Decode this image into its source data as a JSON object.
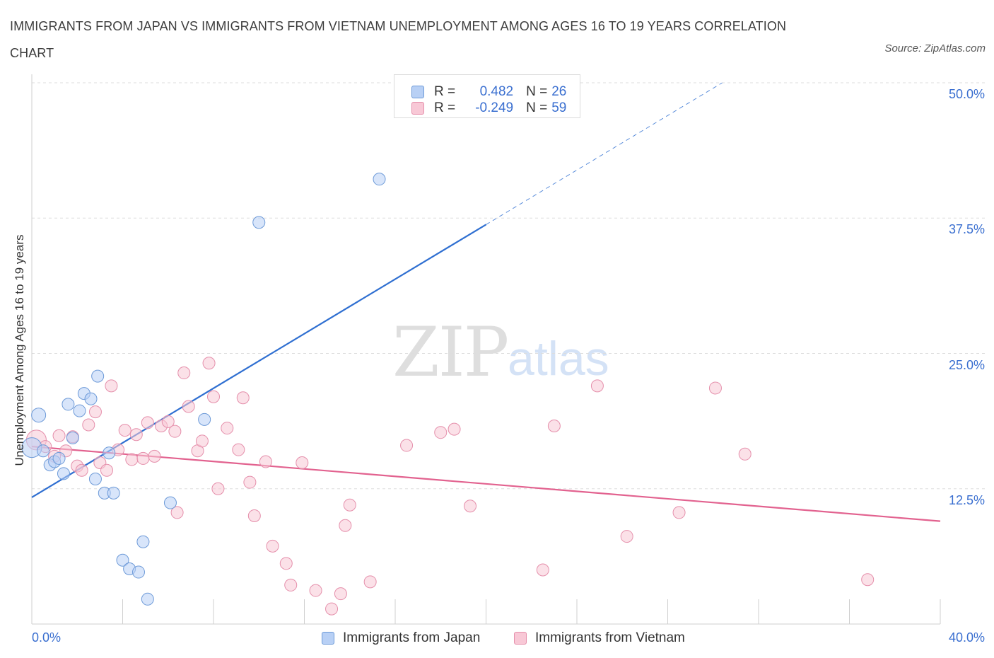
{
  "title": "IMMIGRANTS FROM JAPAN VS IMMIGRANTS FROM VIETNAM UNEMPLOYMENT AMONG AGES 16 TO 19 YEARS CORRELATION CHART",
  "source": "Source: ZipAtlas.com",
  "watermark": {
    "zip": "ZIP",
    "atlas": "atlas"
  },
  "colors": {
    "japan_fill": "#b8d0f5",
    "japan_stroke": "#6d9ad8",
    "japan_line": "#2f6fd1",
    "vietnam_fill": "#f8c8d6",
    "vietnam_stroke": "#e58fab",
    "vietnam_line": "#e2628f",
    "grid": "#dddddd",
    "axis_text": "#3a6fd0"
  },
  "legend": {
    "rows": [
      {
        "r_label": "R =",
        "r_value": "0.482",
        "n_label": "N =",
        "n_value": "26"
      },
      {
        "r_label": "R =",
        "r_value": "-0.249",
        "n_label": "N =",
        "n_value": "59"
      }
    ],
    "bottom": {
      "japan": "Immigrants from Japan",
      "vietnam": "Immigrants from Vietnam"
    }
  },
  "chart_data": {
    "type": "scatter",
    "title": "IMMIGRANTS FROM JAPAN VS IMMIGRANTS FROM VIETNAM UNEMPLOYMENT AMONG AGES 16 TO 19 YEARS CORRELATION CHART",
    "xlabel": "",
    "ylabel": "Unemployment Among Ages 16 to 19 years",
    "xlim": [
      0,
      40
    ],
    "ylim": [
      0,
      50
    ],
    "x_tick_labels": [
      "0.0%",
      "40.0%"
    ],
    "y_ticks": [
      12.5,
      25.0,
      37.5,
      50.0
    ],
    "y_tick_labels": [
      "12.5%",
      "25.0%",
      "37.5%",
      "50.0%"
    ],
    "series": [
      {
        "name": "Immigrants from Japan",
        "R": 0.482,
        "N": 26,
        "trend": {
          "x0": 0,
          "y0": 11.7,
          "x1": 20,
          "y1": 36.9,
          "dashed_to_x": 30.4,
          "dashed_to_y": 50.0
        },
        "points": [
          {
            "x": 0.0,
            "y": 16.3,
            "s": "l"
          },
          {
            "x": 0.3,
            "y": 19.3,
            "s": "m"
          },
          {
            "x": 0.5,
            "y": 16.0,
            "s": "s"
          },
          {
            "x": 0.8,
            "y": 14.7,
            "s": "s"
          },
          {
            "x": 1.0,
            "y": 15.0,
            "s": "s"
          },
          {
            "x": 1.2,
            "y": 15.3,
            "s": "s"
          },
          {
            "x": 1.4,
            "y": 13.9,
            "s": "s"
          },
          {
            "x": 1.6,
            "y": 20.3,
            "s": "s"
          },
          {
            "x": 1.8,
            "y": 17.2,
            "s": "s"
          },
          {
            "x": 2.1,
            "y": 19.7,
            "s": "s"
          },
          {
            "x": 2.3,
            "y": 21.3,
            "s": "s"
          },
          {
            "x": 2.6,
            "y": 20.8,
            "s": "s"
          },
          {
            "x": 2.8,
            "y": 13.4,
            "s": "s"
          },
          {
            "x": 2.9,
            "y": 22.9,
            "s": "s"
          },
          {
            "x": 3.2,
            "y": 12.1,
            "s": "s"
          },
          {
            "x": 3.4,
            "y": 15.8,
            "s": "s"
          },
          {
            "x": 3.6,
            "y": 12.1,
            "s": "s"
          },
          {
            "x": 4.0,
            "y": 5.9,
            "s": "s"
          },
          {
            "x": 4.3,
            "y": 5.1,
            "s": "s"
          },
          {
            "x": 4.7,
            "y": 4.8,
            "s": "s"
          },
          {
            "x": 4.9,
            "y": 7.6,
            "s": "s"
          },
          {
            "x": 5.1,
            "y": 2.3,
            "s": "s"
          },
          {
            "x": 6.1,
            "y": 11.2,
            "s": "s"
          },
          {
            "x": 7.6,
            "y": 18.9,
            "s": "s"
          },
          {
            "x": 10.0,
            "y": 37.1,
            "s": "s"
          },
          {
            "x": 15.3,
            "y": 41.1,
            "s": "s"
          }
        ]
      },
      {
        "name": "Immigrants from Vietnam",
        "R": -0.249,
        "N": 59,
        "trend": {
          "x0": 0,
          "y0": 16.4,
          "x1": 40,
          "y1": 9.5
        },
        "points": [
          {
            "x": 0.2,
            "y": 17.0,
            "s": "l"
          },
          {
            "x": 0.6,
            "y": 16.4,
            "s": "s"
          },
          {
            "x": 1.0,
            "y": 15.5,
            "s": "s"
          },
          {
            "x": 1.2,
            "y": 17.4,
            "s": "s"
          },
          {
            "x": 1.5,
            "y": 16.0,
            "s": "s"
          },
          {
            "x": 1.8,
            "y": 17.3,
            "s": "s"
          },
          {
            "x": 2.0,
            "y": 14.6,
            "s": "s"
          },
          {
            "x": 2.2,
            "y": 14.2,
            "s": "s"
          },
          {
            "x": 2.5,
            "y": 18.4,
            "s": "s"
          },
          {
            "x": 2.8,
            "y": 19.6,
            "s": "s"
          },
          {
            "x": 3.0,
            "y": 14.9,
            "s": "s"
          },
          {
            "x": 3.3,
            "y": 14.2,
            "s": "s"
          },
          {
            "x": 3.5,
            "y": 22.0,
            "s": "s"
          },
          {
            "x": 3.8,
            "y": 16.1,
            "s": "s"
          },
          {
            "x": 4.1,
            "y": 17.9,
            "s": "s"
          },
          {
            "x": 4.4,
            "y": 15.2,
            "s": "s"
          },
          {
            "x": 4.6,
            "y": 17.5,
            "s": "s"
          },
          {
            "x": 4.9,
            "y": 15.3,
            "s": "s"
          },
          {
            "x": 5.1,
            "y": 18.6,
            "s": "s"
          },
          {
            "x": 5.4,
            "y": 15.5,
            "s": "s"
          },
          {
            "x": 5.7,
            "y": 18.3,
            "s": "s"
          },
          {
            "x": 6.0,
            "y": 18.7,
            "s": "s"
          },
          {
            "x": 6.3,
            "y": 17.8,
            "s": "s"
          },
          {
            "x": 6.4,
            "y": 10.3,
            "s": "s"
          },
          {
            "x": 6.7,
            "y": 23.2,
            "s": "s"
          },
          {
            "x": 6.9,
            "y": 20.1,
            "s": "s"
          },
          {
            "x": 7.3,
            "y": 16.0,
            "s": "s"
          },
          {
            "x": 7.5,
            "y": 16.9,
            "s": "s"
          },
          {
            "x": 7.8,
            "y": 24.1,
            "s": "s"
          },
          {
            "x": 8.0,
            "y": 21.0,
            "s": "s"
          },
          {
            "x": 8.2,
            "y": 12.5,
            "s": "s"
          },
          {
            "x": 8.6,
            "y": 18.1,
            "s": "s"
          },
          {
            "x": 9.1,
            "y": 16.1,
            "s": "s"
          },
          {
            "x": 9.3,
            "y": 20.9,
            "s": "s"
          },
          {
            "x": 9.6,
            "y": 13.1,
            "s": "s"
          },
          {
            "x": 9.8,
            "y": 10.0,
            "s": "s"
          },
          {
            "x": 10.3,
            "y": 15.0,
            "s": "s"
          },
          {
            "x": 10.6,
            "y": 7.2,
            "s": "s"
          },
          {
            "x": 11.2,
            "y": 5.6,
            "s": "s"
          },
          {
            "x": 11.4,
            "y": 3.6,
            "s": "s"
          },
          {
            "x": 11.9,
            "y": 14.9,
            "s": "s"
          },
          {
            "x": 12.5,
            "y": 3.1,
            "s": "s"
          },
          {
            "x": 13.2,
            "y": 1.4,
            "s": "s"
          },
          {
            "x": 13.6,
            "y": 2.8,
            "s": "s"
          },
          {
            "x": 13.8,
            "y": 9.1,
            "s": "s"
          },
          {
            "x": 14.0,
            "y": 11.0,
            "s": "s"
          },
          {
            "x": 14.9,
            "y": 3.9,
            "s": "s"
          },
          {
            "x": 16.5,
            "y": 16.5,
            "s": "s"
          },
          {
            "x": 18.0,
            "y": 17.7,
            "s": "s"
          },
          {
            "x": 18.6,
            "y": 18.0,
            "s": "s"
          },
          {
            "x": 19.3,
            "y": 10.9,
            "s": "s"
          },
          {
            "x": 22.5,
            "y": 5.0,
            "s": "s"
          },
          {
            "x": 23.0,
            "y": 18.3,
            "s": "s"
          },
          {
            "x": 24.9,
            "y": 22.0,
            "s": "s"
          },
          {
            "x": 26.2,
            "y": 8.1,
            "s": "s"
          },
          {
            "x": 28.5,
            "y": 10.3,
            "s": "s"
          },
          {
            "x": 30.1,
            "y": 21.8,
            "s": "s"
          },
          {
            "x": 31.4,
            "y": 15.7,
            "s": "s"
          },
          {
            "x": 36.8,
            "y": 4.1,
            "s": "s"
          }
        ]
      }
    ]
  }
}
